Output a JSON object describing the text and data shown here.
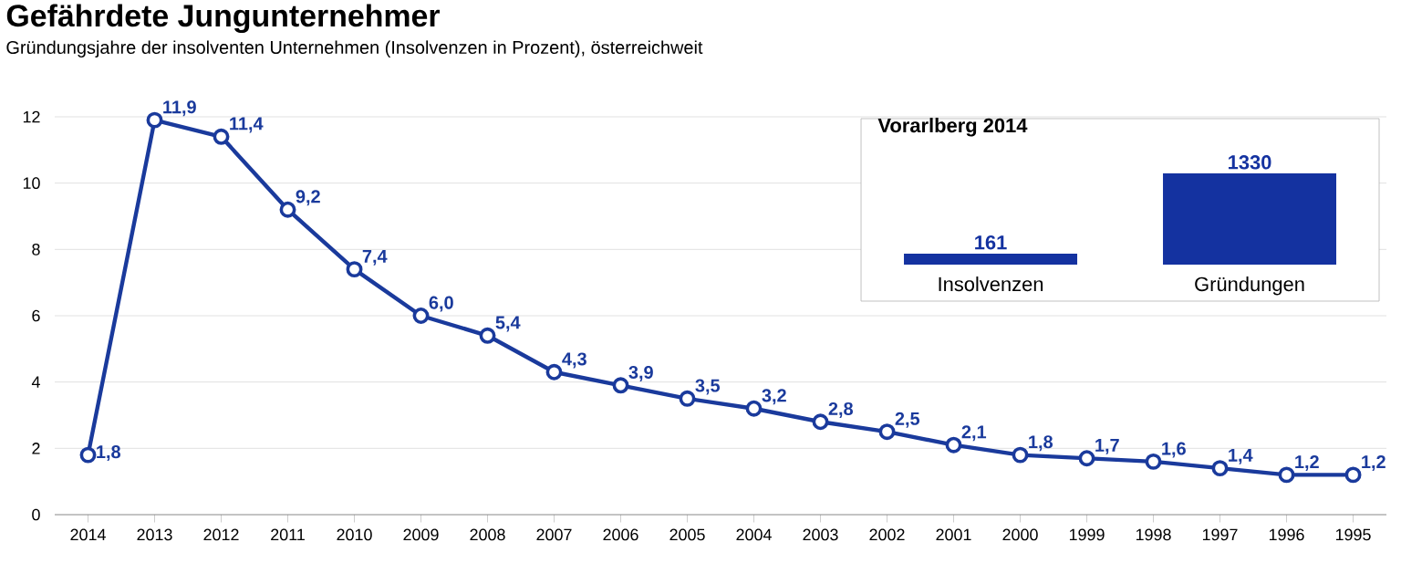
{
  "chart_data": [
    {
      "type": "line",
      "title": "Gefährdete Jungunternehmer",
      "subtitle": "Gründungsjahre der insolventen Unternehmen (Insolvenzen in Prozent), österreichweit",
      "categories": [
        "2014",
        "2013",
        "2012",
        "2011",
        "2010",
        "2009",
        "2008",
        "2007",
        "2006",
        "2005",
        "2004",
        "2003",
        "2002",
        "2001",
        "2000",
        "1999",
        "1998",
        "1997",
        "1996",
        "1995"
      ],
      "values": [
        1.8,
        11.9,
        11.4,
        9.2,
        7.4,
        6.0,
        5.4,
        4.3,
        3.9,
        3.5,
        3.2,
        2.8,
        2.5,
        2.1,
        1.8,
        1.7,
        1.6,
        1.4,
        1.2,
        1.2
      ],
      "value_labels": [
        "1,8",
        "11,9",
        "11,4",
        "9,2",
        "7,4",
        "6,0",
        "5,4",
        "4,3",
        "3,9",
        "3,5",
        "3,2",
        "2,8",
        "2,5",
        "2,1",
        "1,8",
        "1,7",
        "1,6",
        "1,4",
        "1,2",
        "1,2"
      ],
      "color": "#1a3a9c",
      "marker": "circle",
      "grid": "y",
      "ylim": [
        0,
        12
      ],
      "yticks": [
        0,
        2,
        4,
        6,
        8,
        10,
        12
      ]
    },
    {
      "type": "bar",
      "title": "Vorarlberg 2014",
      "categories": [
        "Insolvenzen",
        "Gründungen"
      ],
      "values": [
        161,
        1330
      ],
      "color": "#1432a0",
      "data_labels": true
    }
  ]
}
